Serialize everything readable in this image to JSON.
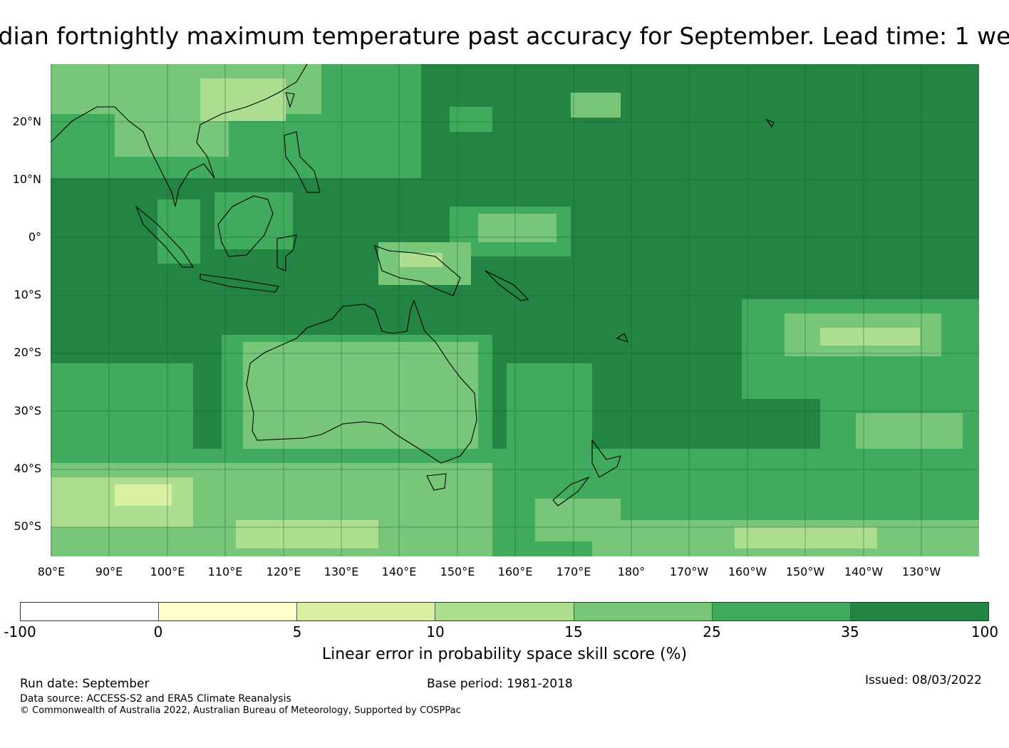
{
  "title": "dian fortnightly maximum temperature past accuracy for September. Lead time: 1 we",
  "map": {
    "base_color": "#26874a",
    "latitude_labels": [
      "20°N",
      "10°N",
      "0°",
      "10°S",
      "20°S",
      "30°S",
      "40°S",
      "50°S"
    ],
    "longitude_labels": [
      "80°E",
      "90°E",
      "100°E",
      "110°E",
      "120°E",
      "130°E",
      "140°E",
      "150°E",
      "160°E",
      "170°E",
      "180°",
      "170°W",
      "160°W",
      "150°W",
      "140°W",
      "130°W"
    ]
  },
  "colorbar": {
    "colors": [
      "#ffffff",
      "#ffffcc",
      "#d9f0a3",
      "#addd8e",
      "#78c679",
      "#41ab5d",
      "#238443"
    ],
    "ticks": [
      "-100",
      "0",
      "5",
      "10",
      "15",
      "25",
      "35",
      "100"
    ],
    "title": "Linear error in probability space skill score (%)"
  },
  "footer": {
    "run_date": "Run date: September",
    "base_period": "Base period: 1981-2018",
    "issued": "Issued: 08/03/2022",
    "data_source": "Data source: ACCESS-S2 and ERA5 Climate Reanalysis",
    "copyright": "© Commonwealth of Australia 2022, Australian Bureau of Meteorology, Supported by COSPPac"
  }
}
